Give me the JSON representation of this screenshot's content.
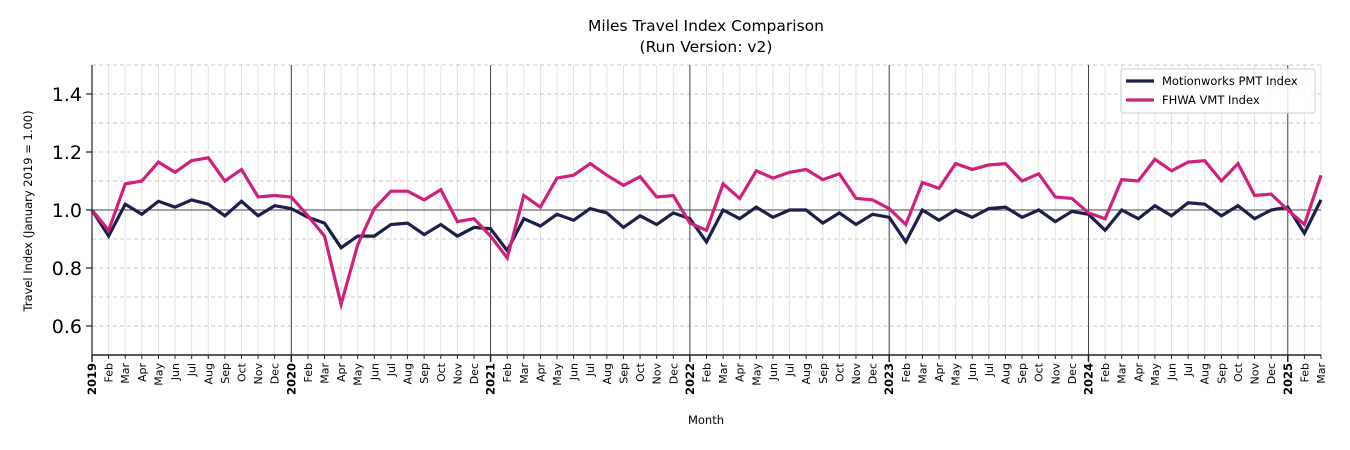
{
  "chart_data": {
    "type": "line",
    "title": "Miles Travel Index Comparison",
    "subtitle": "(Run Version: v2)",
    "xlabel": "Month",
    "ylabel": "Travel Index (January 2019 = 1.00)",
    "ylim": [
      0.5,
      1.5
    ],
    "yticks": [
      0.6,
      0.8,
      1.0,
      1.2,
      1.4
    ],
    "ytick_labels": [
      "0.6",
      "0.8",
      "1.0",
      "1.2",
      "1.4"
    ],
    "grid": true,
    "legend_position": "upper right",
    "reference_line": 1.0,
    "x": [
      "2019",
      "Feb",
      "Mar",
      "Apr",
      "May",
      "Jun",
      "Jul",
      "Aug",
      "Sep",
      "Oct",
      "Nov",
      "Dec",
      "2020",
      "Feb",
      "Mar",
      "Apr",
      "May",
      "Jun",
      "Jul",
      "Aug",
      "Sep",
      "Oct",
      "Nov",
      "Dec",
      "2021",
      "Feb",
      "Mar",
      "Apr",
      "May",
      "Jun",
      "Jul",
      "Aug",
      "Sep",
      "Oct",
      "Nov",
      "Dec",
      "2022",
      "Feb",
      "Mar",
      "Apr",
      "May",
      "Jun",
      "Jul",
      "Aug",
      "Sep",
      "Oct",
      "Nov",
      "Dec",
      "2023",
      "Feb",
      "Mar",
      "Apr",
      "May",
      "Jun",
      "Jul",
      "Aug",
      "Sep",
      "Oct",
      "Nov",
      "Dec",
      "2024",
      "Feb",
      "Mar",
      "Apr",
      "May",
      "Jun",
      "Jul",
      "Aug",
      "Sep",
      "Oct",
      "Nov",
      "Dec",
      "2025",
      "Feb",
      "Mar"
    ],
    "series": [
      {
        "name": "Motionworks PMT Index",
        "color": "#1c1f4a",
        "values": [
          1.0,
          0.91,
          1.02,
          0.985,
          1.03,
          1.01,
          1.035,
          1.02,
          0.98,
          1.03,
          0.98,
          1.015,
          1.005,
          0.975,
          0.955,
          0.87,
          0.91,
          0.91,
          0.95,
          0.955,
          0.915,
          0.95,
          0.91,
          0.94,
          0.935,
          0.86,
          0.97,
          0.945,
          0.985,
          0.965,
          1.005,
          0.99,
          0.94,
          0.98,
          0.95,
          0.99,
          0.97,
          0.89,
          1.0,
          0.97,
          1.01,
          0.975,
          1.0,
          1.0,
          0.955,
          0.99,
          0.95,
          0.985,
          0.975,
          0.89,
          1.0,
          0.965,
          1.0,
          0.975,
          1.005,
          1.01,
          0.975,
          1.0,
          0.96,
          0.995,
          0.985,
          0.93,
          1.0,
          0.97,
          1.015,
          0.98,
          1.025,
          1.02,
          0.98,
          1.015,
          0.97,
          1.0,
          1.01,
          0.92,
          1.035
        ]
      },
      {
        "name": "FHWA VMT Index",
        "color": "#d0207d",
        "values": [
          1.0,
          0.93,
          1.09,
          1.1,
          1.165,
          1.13,
          1.17,
          1.18,
          1.1,
          1.14,
          1.045,
          1.05,
          1.045,
          0.98,
          0.91,
          0.675,
          0.88,
          1.005,
          1.065,
          1.065,
          1.035,
          1.07,
          0.96,
          0.97,
          0.91,
          0.835,
          1.05,
          1.01,
          1.11,
          1.12,
          1.16,
          1.12,
          1.085,
          1.115,
          1.045,
          1.05,
          0.955,
          0.93,
          1.09,
          1.04,
          1.135,
          1.11,
          1.13,
          1.14,
          1.105,
          1.125,
          1.04,
          1.035,
          1.005,
          0.95,
          1.095,
          1.075,
          1.16,
          1.14,
          1.155,
          1.16,
          1.1,
          1.125,
          1.045,
          1.04,
          0.99,
          0.97,
          1.105,
          1.1,
          1.175,
          1.135,
          1.165,
          1.17,
          1.1,
          1.16,
          1.05,
          1.055,
          1.0,
          0.95,
          1.12
        ]
      }
    ]
  }
}
